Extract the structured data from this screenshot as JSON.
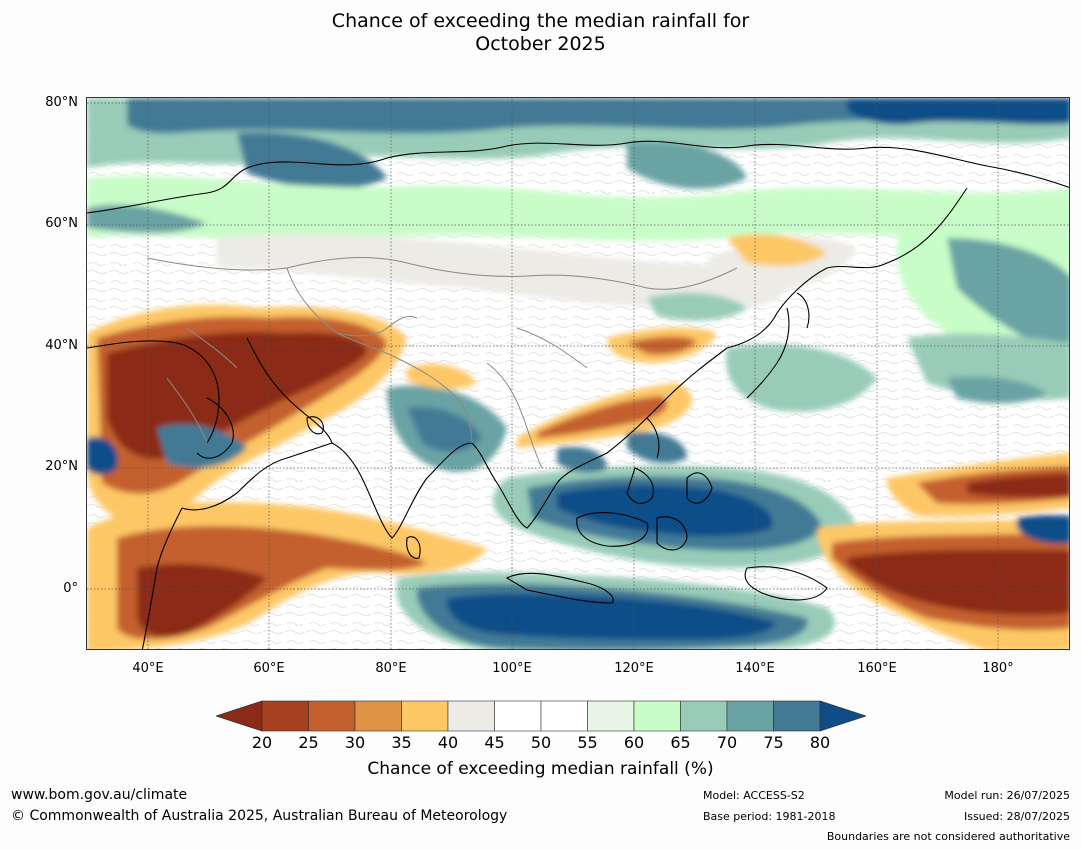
{
  "title": {
    "line1": "Chance of exceeding the median rainfall for",
    "line2": "October 2025"
  },
  "map": {
    "lat_labels": [
      "80°N",
      "60°N",
      "40°N",
      "20°N",
      "0°"
    ],
    "lon_labels": [
      "40°E",
      "60°E",
      "80°E",
      "100°E",
      "120°E",
      "140°E",
      "160°E",
      "180°"
    ],
    "extent": {
      "lon": [
        30,
        192
      ],
      "lat": [
        -10,
        81
      ]
    },
    "ocean_color": "#ffffff",
    "coast_color": "#000000",
    "border_color": "#8a8a8a"
  },
  "colorbar": {
    "label": "Chance of exceeding median rainfall (%)",
    "ticks": [
      "20",
      "25",
      "30",
      "35",
      "40",
      "45",
      "50",
      "55",
      "60",
      "65",
      "70",
      "75",
      "80"
    ],
    "below_color": "#8b2a17",
    "above_color": "#0e4d88",
    "colors": [
      "#a6401f",
      "#c4602d",
      "#df9445",
      "#fdc766",
      "#edebe6",
      "#ffffff",
      "#ffffff",
      "#e6f5e4",
      "#c8fdc8",
      "#98ccb8",
      "#6aa3a4",
      "#427a96"
    ]
  },
  "footer": {
    "website": "www.bom.gov.au/climate",
    "copyright": "© Commonwealth of Australia 2025, Australian Bureau of Meteorology",
    "model": "Model: ACCESS-S2",
    "base_period": "Base period: 1981-2018",
    "model_run": "Model run: 26/07/2025",
    "issued": "Issued: 28/07/2025",
    "disclaimer": "Boundaries are not considered authoritative"
  }
}
